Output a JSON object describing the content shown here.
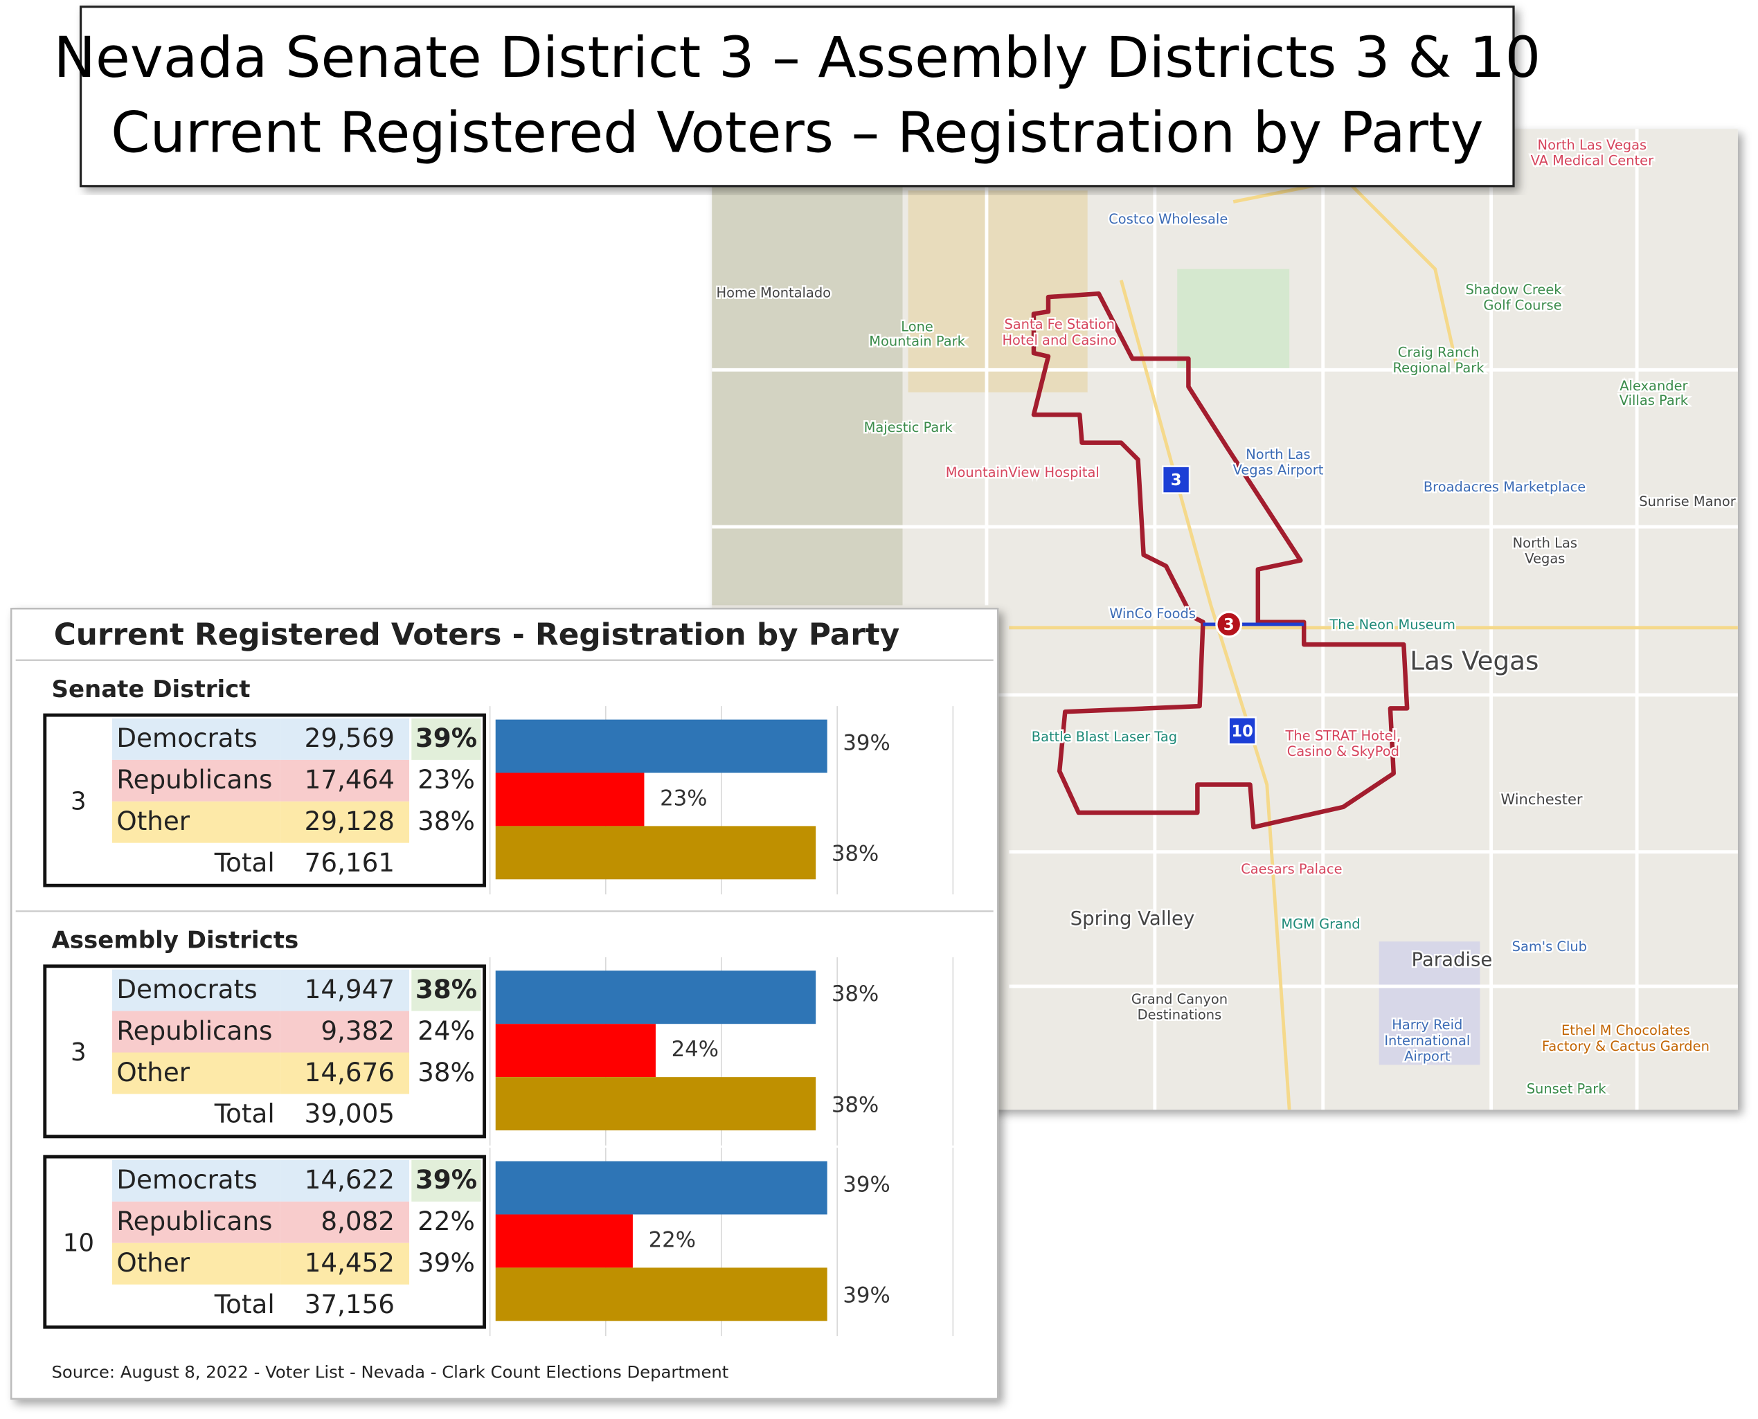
{
  "title": [
    "Nevada Senate District 3 – Assembly Districts 3 & 10",
    "Current Registered Voters – Registration by Party"
  ],
  "panel": {
    "title": "Current Registered Voters - Registration by Party",
    "sections": [
      "Senate District",
      "Assembly Districts"
    ],
    "tables": [
      {
        "district": "3",
        "counts": [
          "29,569",
          "17,464",
          "29,128"
        ],
        "total_label": "Total",
        "total": "76,161"
      },
      {
        "district": "3",
        "counts": [
          "14,947",
          "9,382",
          "14,676"
        ],
        "total_label": "Total",
        "total": "39,005"
      },
      {
        "district": "10",
        "counts": [
          "14,622",
          "8,082",
          "14,452"
        ],
        "total_label": "Total",
        "total": "37,156"
      }
    ],
    "source": "Source: August 8, 2022 - Voter List - Nevada - Clark Count Elections Department"
  },
  "chart_data": [
    {
      "type": "bar",
      "orientation": "horizontal",
      "categories": [
        "Democrats",
        "Republicans",
        "Other"
      ],
      "values": [
        39,
        23,
        38
      ],
      "value_labels": [
        "39%",
        "23%",
        "38%"
      ],
      "colors": [
        "#2e75b6",
        "#ff0000",
        "#bf9000"
      ],
      "xlim": [
        10,
        50
      ],
      "grid": true
    },
    {
      "type": "bar",
      "orientation": "horizontal",
      "categories": [
        "Democrats",
        "Republicans",
        "Other"
      ],
      "values": [
        38,
        24,
        38
      ],
      "value_labels": [
        "38%",
        "24%",
        "38%"
      ],
      "colors": [
        "#2e75b6",
        "#ff0000",
        "#bf9000"
      ],
      "xlim": [
        10,
        50
      ],
      "grid": true
    },
    {
      "type": "bar",
      "orientation": "horizontal",
      "categories": [
        "Democrats",
        "Republicans",
        "Other"
      ],
      "values": [
        39,
        22,
        39
      ],
      "value_labels": [
        "39%",
        "22%",
        "39%"
      ],
      "colors": [
        "#2e75b6",
        "#ff0000",
        "#bf9000"
      ],
      "xlim": [
        10,
        50
      ],
      "grid": true
    }
  ],
  "map": {
    "labels": [
      "Costco Wholesale",
      "North Las Vegas",
      "VA Medical Center",
      "Shadow Creek",
      "Golf Course",
      "Craig Ranch",
      "Regional Park",
      "Alexander",
      "Villas Park",
      "Lone",
      "Mountain Park",
      "Majestic Park",
      "Home Montalado",
      "MountainView Hospital",
      "North Las",
      "Vegas Airport",
      "Broadacres Marketplace",
      "Sunrise Manor",
      "North Las",
      "Vegas",
      "WinCo Foods",
      "The Neon Museum",
      "Las Vegas",
      "Battle Blast Laser Tag",
      "The STRAT Hotel,",
      "Casino & SkyPod",
      "Winchester",
      "Caesars Palace",
      "Spring Valley",
      "MGM Grand",
      "Sam's Club",
      "Paradise",
      "Grand Canyon",
      "Destinations",
      "Harry Reid",
      "International",
      "Airport",
      "Ethel M Chocolates",
      "Factory & Cactus Garden",
      "Sunset Park",
      "Santa Fe Station",
      "Hotel and Casino"
    ],
    "markers": [
      "3",
      "10",
      "3"
    ]
  }
}
